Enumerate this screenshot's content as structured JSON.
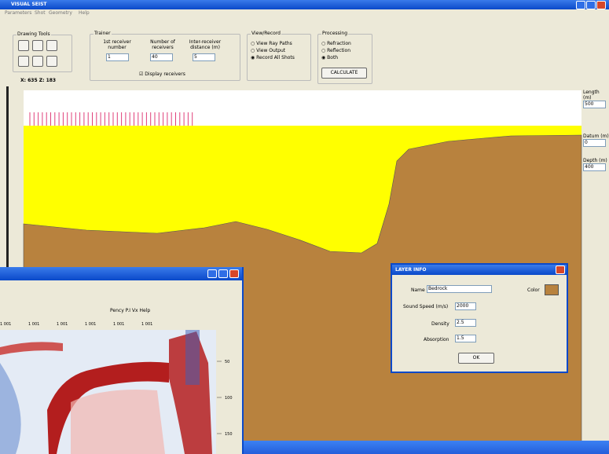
{
  "window": {
    "title": "VISUAL SEIST",
    "menu": [
      "Parameters",
      "Shot",
      "Geometry",
      "Help"
    ]
  },
  "drawing_tools": {
    "title": "Drawing Tools"
  },
  "trainer": {
    "title": "Trainer",
    "first_receiver_label": "1st receiver number",
    "first_receiver": "1",
    "receivers_label": "Number of receivers",
    "receivers": "40",
    "distance_label": "Inter-receiver distance (m)",
    "distance": "5",
    "display_receivers": "Display receivers"
  },
  "view_record": {
    "title": "View/Record",
    "options": [
      "View Ray Paths",
      "View Output",
      "Record All Shots"
    ]
  },
  "processing": {
    "title": "Processing",
    "options": [
      "Refraction",
      "Reflection",
      "Both"
    ],
    "button": "CALCULATE"
  },
  "coords": "X: 635 Z: 183",
  "side": {
    "length_label": "Length (m)",
    "length": "500",
    "datum_label": "Datum (m)",
    "datum": "0",
    "depth_label": "Depth (m)",
    "depth": "400"
  },
  "layer_info": {
    "title": "LAYER INFO",
    "name_label": "Name",
    "name": "Bedrock",
    "color_label": "Color",
    "speed_label": "Sound Speed (m/s)",
    "speed": "2000",
    "density_label": "Density",
    "density": "2.5",
    "absorption_label": "Absorption",
    "absorption": "1.5",
    "ok": "OK"
  },
  "output_window": {
    "menu": "Pency P.I Vx Help",
    "ticks": [
      "1 001",
      "1 001",
      "1 001",
      "1 001",
      "1 001",
      "1 001"
    ],
    "depth_ticks": [
      "50",
      "100",
      "150"
    ]
  }
}
